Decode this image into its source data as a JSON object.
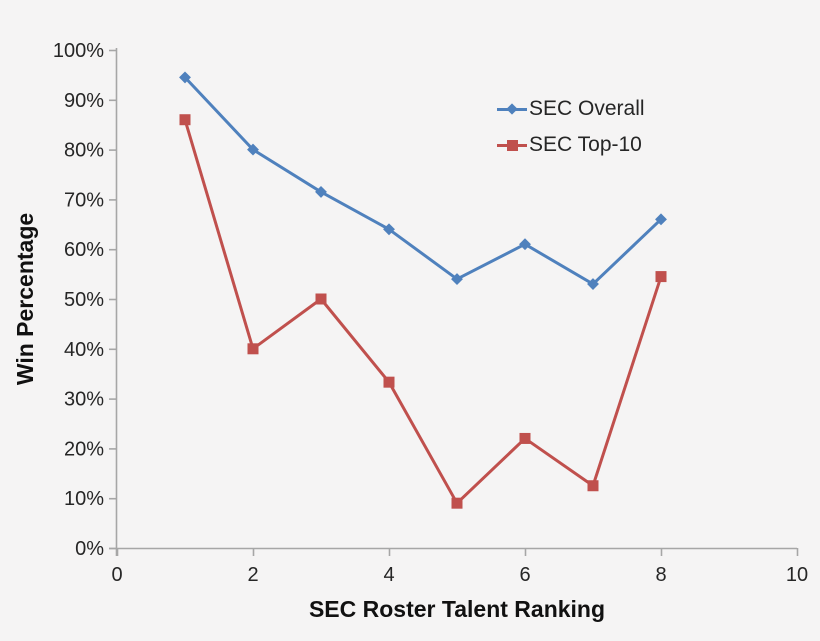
{
  "chart_data": {
    "type": "line",
    "title": "",
    "xlabel": "SEC Roster Talent Ranking",
    "ylabel": "Win Percentage",
    "x": [
      1,
      2,
      3,
      4,
      5,
      6,
      7,
      8
    ],
    "series": [
      {
        "name": "SEC Overall",
        "color": "#4F81BD",
        "marker": "diamond",
        "values": [
          94.5,
          80,
          71.5,
          64,
          54,
          61,
          53,
          66
        ]
      },
      {
        "name": "SEC Top-10",
        "color": "#C0504D",
        "marker": "square",
        "values": [
          86,
          40,
          50,
          33.3,
          9,
          22,
          12.5,
          54.5
        ]
      }
    ],
    "xlim": [
      0,
      10
    ],
    "ylim": [
      0,
      100
    ],
    "x_ticks": [
      0,
      2,
      4,
      6,
      8,
      10
    ],
    "y_ticks": [
      0,
      10,
      20,
      30,
      40,
      50,
      60,
      70,
      80,
      90,
      100
    ],
    "y_tick_suffix": "%",
    "grid": false,
    "legend_position": "inside upper-right",
    "colors": {
      "background": "#F5F4F4",
      "axis": "#A6A6A6",
      "tick_text": "#262626",
      "title_text": "#111111"
    }
  }
}
